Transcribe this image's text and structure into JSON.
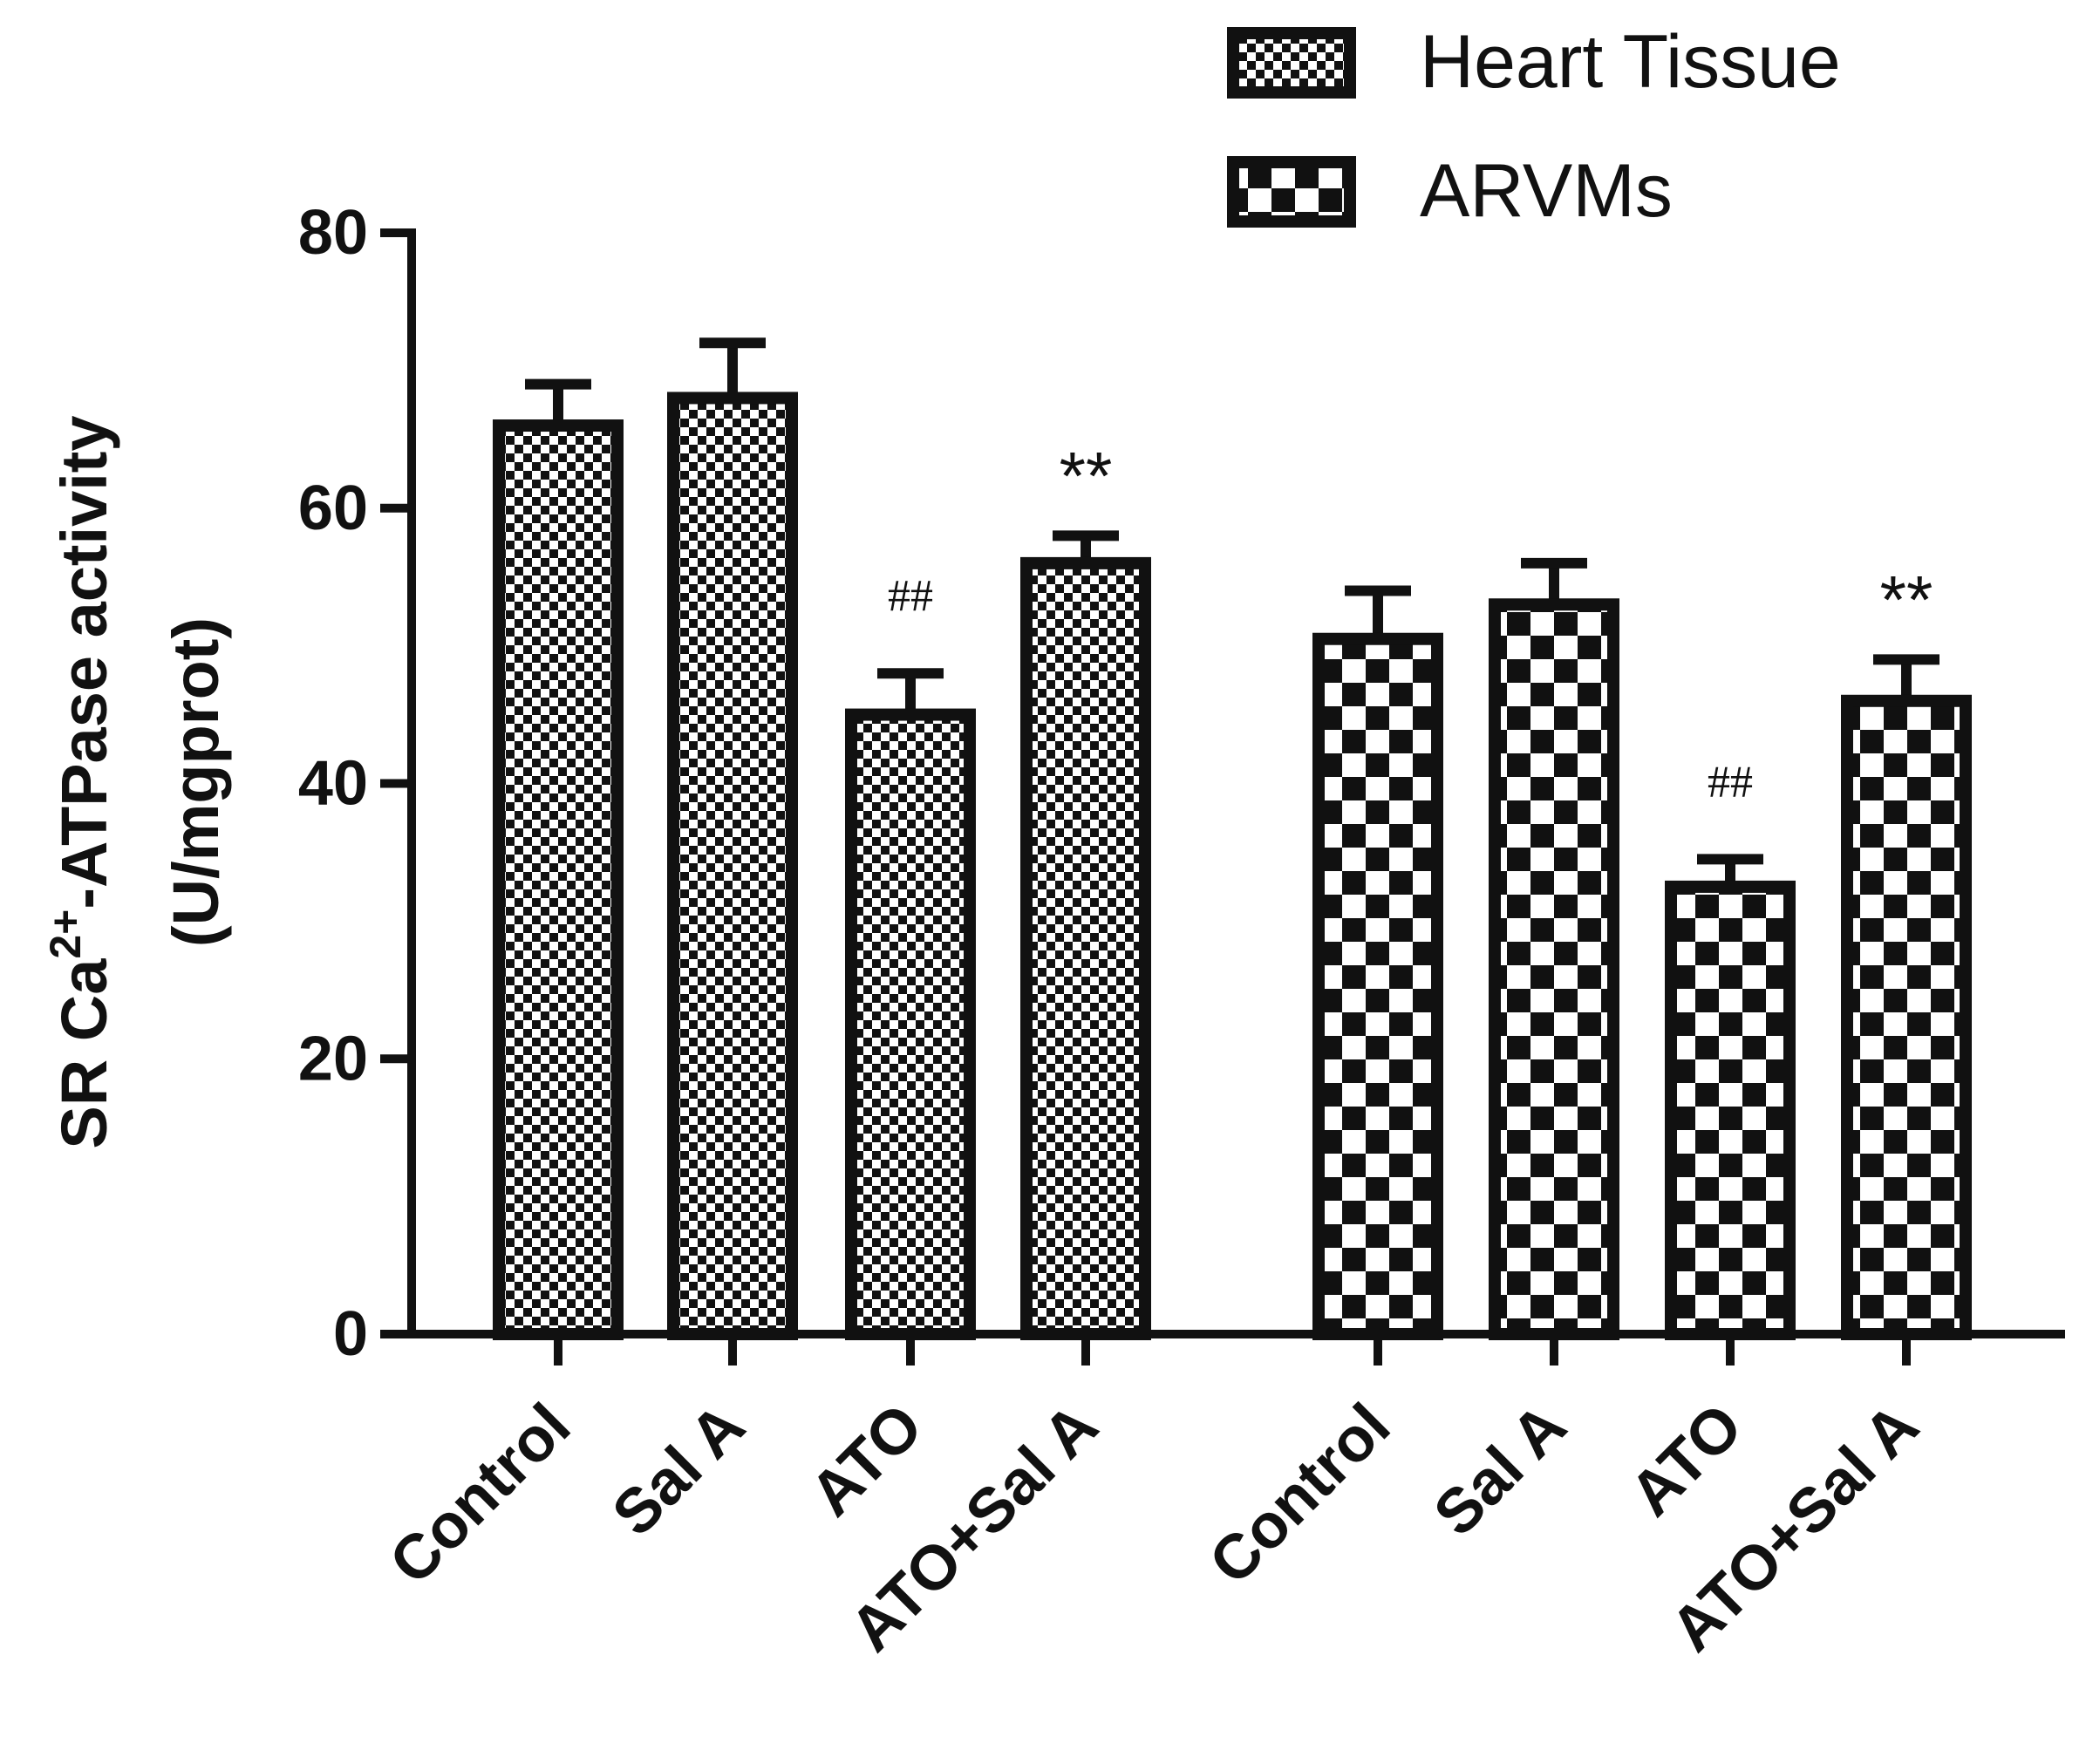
{
  "chart_data": {
    "type": "bar",
    "title": "",
    "xlabel": "",
    "ylabel": {
      "prefix": "SR Ca",
      "superscript": "2+",
      "suffix": "-ATPase activity",
      "units": "(U/mgprot)"
    },
    "ylim": [
      0,
      80
    ],
    "yticks": [
      "0",
      "20",
      "40",
      "60",
      "80"
    ],
    "legend_position": "top-right",
    "groups": [
      {
        "name": "Heart Tissue",
        "pattern": "fine-checker",
        "categories": [
          "Control",
          "Sal A",
          "ATO",
          "ATO+Sal A"
        ],
        "values": [
          66,
          68,
          45,
          56
        ],
        "errors": [
          3,
          4,
          3,
          2
        ],
        "annotations": [
          "",
          "",
          "##",
          "**"
        ]
      },
      {
        "name": "ARVMs",
        "pattern": "coarse-checker",
        "categories": [
          "Control",
          "Sal A",
          "ATO",
          "ATO+Sal A"
        ],
        "values": [
          50.5,
          53,
          32.5,
          46
        ],
        "errors": [
          3.5,
          3,
          2,
          3
        ],
        "annotations": [
          "",
          "",
          "##",
          "**"
        ]
      }
    ]
  }
}
